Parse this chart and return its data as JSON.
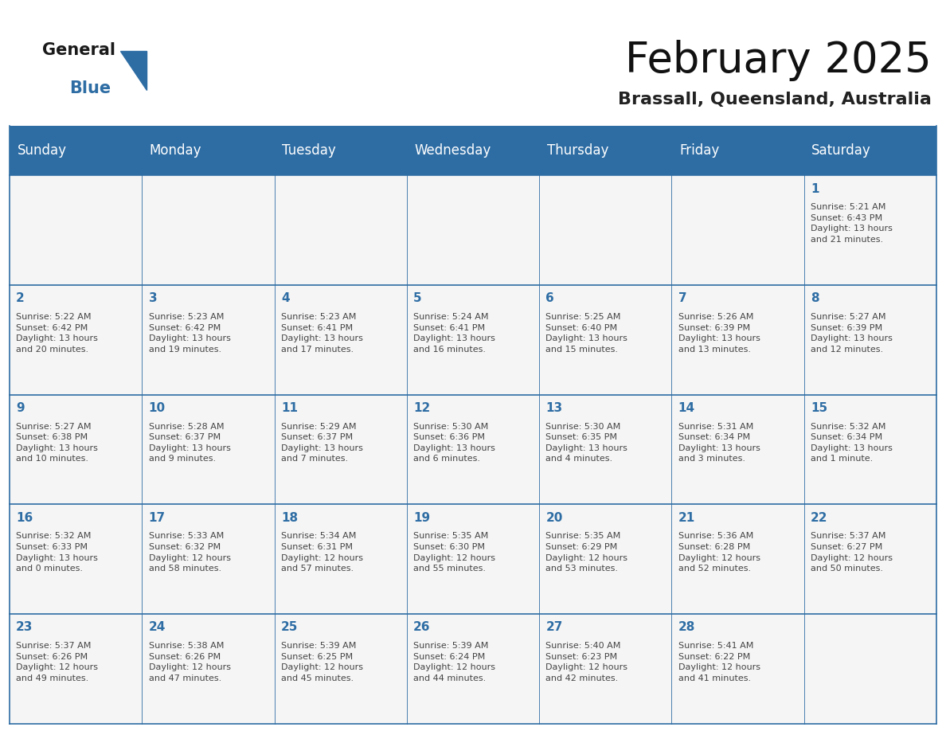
{
  "title": "February 2025",
  "subtitle": "Brassall, Queensland, Australia",
  "header_bg": "#2E6DA4",
  "header_text_color": "#FFFFFF",
  "cell_bg": "#F5F5F5",
  "day_number_color": "#2E6DA4",
  "text_color": "#444444",
  "border_color": "#2E6DA4",
  "days_of_week": [
    "Sunday",
    "Monday",
    "Tuesday",
    "Wednesday",
    "Thursday",
    "Friday",
    "Saturday"
  ],
  "weeks": [
    [
      {
        "day": null,
        "info": null
      },
      {
        "day": null,
        "info": null
      },
      {
        "day": null,
        "info": null
      },
      {
        "day": null,
        "info": null
      },
      {
        "day": null,
        "info": null
      },
      {
        "day": null,
        "info": null
      },
      {
        "day": 1,
        "info": "Sunrise: 5:21 AM\nSunset: 6:43 PM\nDaylight: 13 hours\nand 21 minutes."
      }
    ],
    [
      {
        "day": 2,
        "info": "Sunrise: 5:22 AM\nSunset: 6:42 PM\nDaylight: 13 hours\nand 20 minutes."
      },
      {
        "day": 3,
        "info": "Sunrise: 5:23 AM\nSunset: 6:42 PM\nDaylight: 13 hours\nand 19 minutes."
      },
      {
        "day": 4,
        "info": "Sunrise: 5:23 AM\nSunset: 6:41 PM\nDaylight: 13 hours\nand 17 minutes."
      },
      {
        "day": 5,
        "info": "Sunrise: 5:24 AM\nSunset: 6:41 PM\nDaylight: 13 hours\nand 16 minutes."
      },
      {
        "day": 6,
        "info": "Sunrise: 5:25 AM\nSunset: 6:40 PM\nDaylight: 13 hours\nand 15 minutes."
      },
      {
        "day": 7,
        "info": "Sunrise: 5:26 AM\nSunset: 6:39 PM\nDaylight: 13 hours\nand 13 minutes."
      },
      {
        "day": 8,
        "info": "Sunrise: 5:27 AM\nSunset: 6:39 PM\nDaylight: 13 hours\nand 12 minutes."
      }
    ],
    [
      {
        "day": 9,
        "info": "Sunrise: 5:27 AM\nSunset: 6:38 PM\nDaylight: 13 hours\nand 10 minutes."
      },
      {
        "day": 10,
        "info": "Sunrise: 5:28 AM\nSunset: 6:37 PM\nDaylight: 13 hours\nand 9 minutes."
      },
      {
        "day": 11,
        "info": "Sunrise: 5:29 AM\nSunset: 6:37 PM\nDaylight: 13 hours\nand 7 minutes."
      },
      {
        "day": 12,
        "info": "Sunrise: 5:30 AM\nSunset: 6:36 PM\nDaylight: 13 hours\nand 6 minutes."
      },
      {
        "day": 13,
        "info": "Sunrise: 5:30 AM\nSunset: 6:35 PM\nDaylight: 13 hours\nand 4 minutes."
      },
      {
        "day": 14,
        "info": "Sunrise: 5:31 AM\nSunset: 6:34 PM\nDaylight: 13 hours\nand 3 minutes."
      },
      {
        "day": 15,
        "info": "Sunrise: 5:32 AM\nSunset: 6:34 PM\nDaylight: 13 hours\nand 1 minute."
      }
    ],
    [
      {
        "day": 16,
        "info": "Sunrise: 5:32 AM\nSunset: 6:33 PM\nDaylight: 13 hours\nand 0 minutes."
      },
      {
        "day": 17,
        "info": "Sunrise: 5:33 AM\nSunset: 6:32 PM\nDaylight: 12 hours\nand 58 minutes."
      },
      {
        "day": 18,
        "info": "Sunrise: 5:34 AM\nSunset: 6:31 PM\nDaylight: 12 hours\nand 57 minutes."
      },
      {
        "day": 19,
        "info": "Sunrise: 5:35 AM\nSunset: 6:30 PM\nDaylight: 12 hours\nand 55 minutes."
      },
      {
        "day": 20,
        "info": "Sunrise: 5:35 AM\nSunset: 6:29 PM\nDaylight: 12 hours\nand 53 minutes."
      },
      {
        "day": 21,
        "info": "Sunrise: 5:36 AM\nSunset: 6:28 PM\nDaylight: 12 hours\nand 52 minutes."
      },
      {
        "day": 22,
        "info": "Sunrise: 5:37 AM\nSunset: 6:27 PM\nDaylight: 12 hours\nand 50 minutes."
      }
    ],
    [
      {
        "day": 23,
        "info": "Sunrise: 5:37 AM\nSunset: 6:26 PM\nDaylight: 12 hours\nand 49 minutes."
      },
      {
        "day": 24,
        "info": "Sunrise: 5:38 AM\nSunset: 6:26 PM\nDaylight: 12 hours\nand 47 minutes."
      },
      {
        "day": 25,
        "info": "Sunrise: 5:39 AM\nSunset: 6:25 PM\nDaylight: 12 hours\nand 45 minutes."
      },
      {
        "day": 26,
        "info": "Sunrise: 5:39 AM\nSunset: 6:24 PM\nDaylight: 12 hours\nand 44 minutes."
      },
      {
        "day": 27,
        "info": "Sunrise: 5:40 AM\nSunset: 6:23 PM\nDaylight: 12 hours\nand 42 minutes."
      },
      {
        "day": 28,
        "info": "Sunrise: 5:41 AM\nSunset: 6:22 PM\nDaylight: 12 hours\nand 41 minutes."
      },
      {
        "day": null,
        "info": null
      }
    ]
  ],
  "logo_general_color": "#1a1a1a",
  "logo_blue_color": "#2E6DA4",
  "logo_triangle_color": "#2E6DA4"
}
